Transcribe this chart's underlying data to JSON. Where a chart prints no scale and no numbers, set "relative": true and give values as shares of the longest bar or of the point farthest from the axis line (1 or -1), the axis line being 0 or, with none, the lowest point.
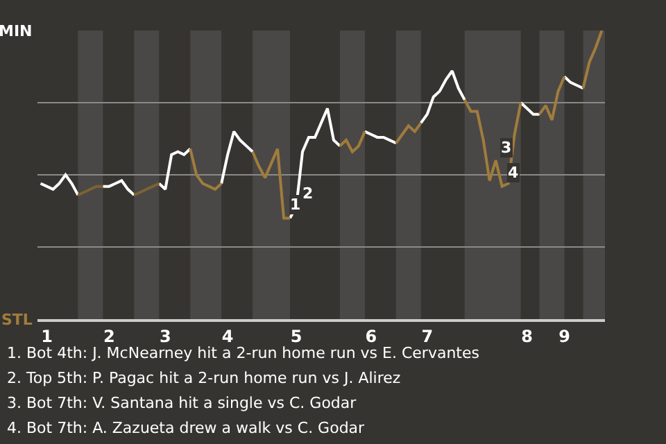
{
  "chart_data": {
    "type": "line",
    "relative": true,
    "categories": [
      null,
      "1",
      null,
      null,
      null,
      null,
      null,
      null,
      null,
      null,
      null,
      "2",
      null,
      null,
      null,
      null,
      null,
      null,
      null,
      null,
      "3",
      null,
      null,
      null,
      null,
      null,
      null,
      null,
      null,
      null,
      "4",
      null,
      null,
      null,
      null,
      null,
      null,
      null,
      null,
      null,
      null,
      "5",
      null,
      null,
      null,
      null,
      null,
      null,
      null,
      null,
      null,
      null,
      null,
      "6",
      null,
      null,
      null,
      null,
      null,
      null,
      null,
      null,
      "7",
      null,
      null,
      null,
      null,
      null,
      null,
      null,
      null,
      null,
      null,
      null,
      null,
      null,
      null,
      null,
      "8",
      null,
      null,
      null,
      null,
      null,
      "9",
      null,
      null,
      null,
      null,
      null,
      null
    ],
    "grid": "y",
    "marker": "none",
    "line_style": "solid",
    "series": [
      {
        "color": "#ffffff",
        "values": [
          0.47,
          0.46,
          0.45,
          0.47,
          0.5,
          0.47,
          0.43,
          null,
          null,
          null,
          0.46,
          0.46,
          0.47,
          0.48,
          0.45,
          0.43,
          null,
          null,
          null,
          0.47,
          0.45,
          0.57,
          0.58,
          0.57,
          0.59,
          null,
          null,
          null,
          null,
          0.47,
          0.57,
          0.65,
          0.62,
          0.6,
          0.58,
          null,
          null,
          null,
          null,
          null,
          0.35,
          0.39,
          0.58,
          0.63,
          0.63,
          0.68,
          0.73,
          0.62,
          0.6,
          null,
          null,
          null,
          0.65,
          0.64,
          0.63,
          0.63,
          0.62,
          0.61,
          null,
          null,
          null,
          0.68,
          0.71,
          0.77,
          0.79,
          0.83,
          0.86,
          0.8,
          0.76,
          null,
          null,
          null,
          null,
          null,
          null,
          null,
          null,
          0.75,
          0.73,
          0.71,
          0.71,
          null,
          null,
          null,
          0.84,
          0.82,
          0.81,
          0.8,
          null,
          null,
          null
        ]
      },
      {
        "color": "#7d6233",
        "values": [
          null,
          null,
          null,
          null,
          null,
          null,
          0.43,
          0.44,
          0.45,
          0.46,
          0.46,
          null,
          null,
          null,
          null,
          0.43,
          0.44,
          0.45,
          0.46,
          0.47,
          null,
          null,
          null,
          null,
          null,
          null,
          null,
          null,
          null,
          null,
          null,
          null,
          null,
          null,
          null,
          null,
          null,
          null,
          null,
          null,
          null,
          null,
          null,
          null,
          null,
          null,
          null,
          null,
          null,
          null,
          null,
          null,
          null,
          null,
          null,
          null,
          null,
          null,
          null,
          null,
          null,
          null,
          null,
          null,
          null,
          null,
          null,
          null,
          null,
          null,
          null,
          null,
          null,
          null,
          null,
          null,
          null,
          null,
          null,
          null,
          null,
          null,
          null,
          null,
          null,
          null,
          null,
          null,
          null,
          null,
          null
        ]
      },
      {
        "color": "#a07c3c",
        "values": [
          null,
          null,
          null,
          null,
          null,
          null,
          null,
          null,
          null,
          null,
          null,
          null,
          null,
          null,
          null,
          null,
          null,
          null,
          null,
          null,
          null,
          null,
          null,
          null,
          0.59,
          0.5,
          0.47,
          0.46,
          0.45,
          0.47,
          null,
          null,
          null,
          null,
          0.58,
          0.53,
          0.49,
          0.54,
          0.59,
          0.35,
          0.35,
          null,
          null,
          null,
          null,
          null,
          null,
          null,
          0.6,
          0.62,
          0.58,
          0.6,
          0.65,
          null,
          null,
          null,
          null,
          0.61,
          0.64,
          0.67,
          0.65,
          0.68,
          null,
          null,
          null,
          null,
          null,
          null,
          0.76,
          0.72,
          0.72,
          0.62,
          0.48,
          0.55,
          0.46,
          0.47,
          0.64,
          0.75,
          null,
          null,
          0.71,
          0.74,
          0.69,
          0.79,
          0.84,
          null,
          null,
          0.8,
          0.89,
          0.94,
          1
        ]
      }
    ],
    "annotations": [
      "MIN",
      "STL",
      {
        "text": "1",
        "y": 0.35
      },
      {
        "text": "2",
        "y": 0.39
      },
      {
        "text": "3",
        "y": 0.55
      },
      {
        "text": "4",
        "y": 0.46
      },
      "1. Bot 4th: J. McNearney hit a 2-run home run vs E. Cervantes",
      "2. Top 5th: P. Pagac hit a 2-run home run vs J. Alirez",
      "3. Bot 7th: V. Santana hit a single vs C. Godar",
      "4. Bot 7th: A. Zazueta drew a walk vs C. Godar"
    ]
  }
}
